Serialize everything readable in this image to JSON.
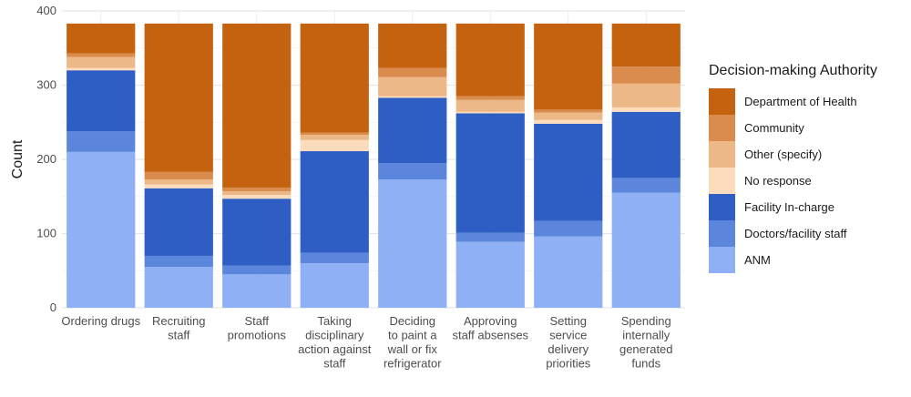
{
  "chart_data": {
    "type": "bar",
    "stacked": true,
    "title": "",
    "xlabel": "",
    "ylabel": "Count",
    "ylim": [
      0,
      400
    ],
    "yticks": [
      "0",
      "100",
      "200",
      "300",
      "400"
    ],
    "grid": true,
    "legend_position": "right",
    "legend_title": "Decision-making Authority",
    "categories": [
      [
        "Ordering drugs"
      ],
      [
        "Recruiting",
        "staff"
      ],
      [
        "Staff",
        "promotions"
      ],
      [
        "Taking",
        "disciplinary",
        "action against",
        "staff"
      ],
      [
        "Deciding",
        "to paint a",
        "wall or fix",
        "refrigerator"
      ],
      [
        "Approving",
        "staff absenses"
      ],
      [
        "Setting",
        "service",
        "delivery",
        "priorities"
      ],
      [
        "Spending",
        "internally",
        "generated",
        "funds"
      ]
    ],
    "series": [
      {
        "name": "ANM",
        "color": "#8fb0f5",
        "values": [
          210,
          55,
          45,
          60,
          173,
          89,
          96,
          155
        ]
      },
      {
        "name": "Doctors/facility staff",
        "color": "#5b86db",
        "values": [
          28,
          15,
          12,
          14,
          22,
          12,
          21,
          20
        ]
      },
      {
        "name": "Facility In-charge",
        "color": "#2e5ec4",
        "values": [
          82,
          91,
          90,
          137,
          88,
          161,
          131,
          89
        ]
      },
      {
        "name": "No response",
        "color": "#fcdcbd",
        "values": [
          3,
          5,
          5,
          15,
          2,
          2,
          5,
          6
        ]
      },
      {
        "name": "Other (specify)",
        "color": "#edb887",
        "values": [
          15,
          7,
          5,
          7,
          26,
          16,
          10,
          32
        ]
      },
      {
        "name": "Community",
        "color": "#d98c4d",
        "values": [
          5,
          10,
          5,
          3,
          12,
          5,
          4,
          23
        ]
      },
      {
        "name": "Department of Health",
        "color": "#c4620f",
        "values": [
          40,
          200,
          221,
          147,
          60,
          98,
          116,
          58
        ]
      }
    ]
  }
}
